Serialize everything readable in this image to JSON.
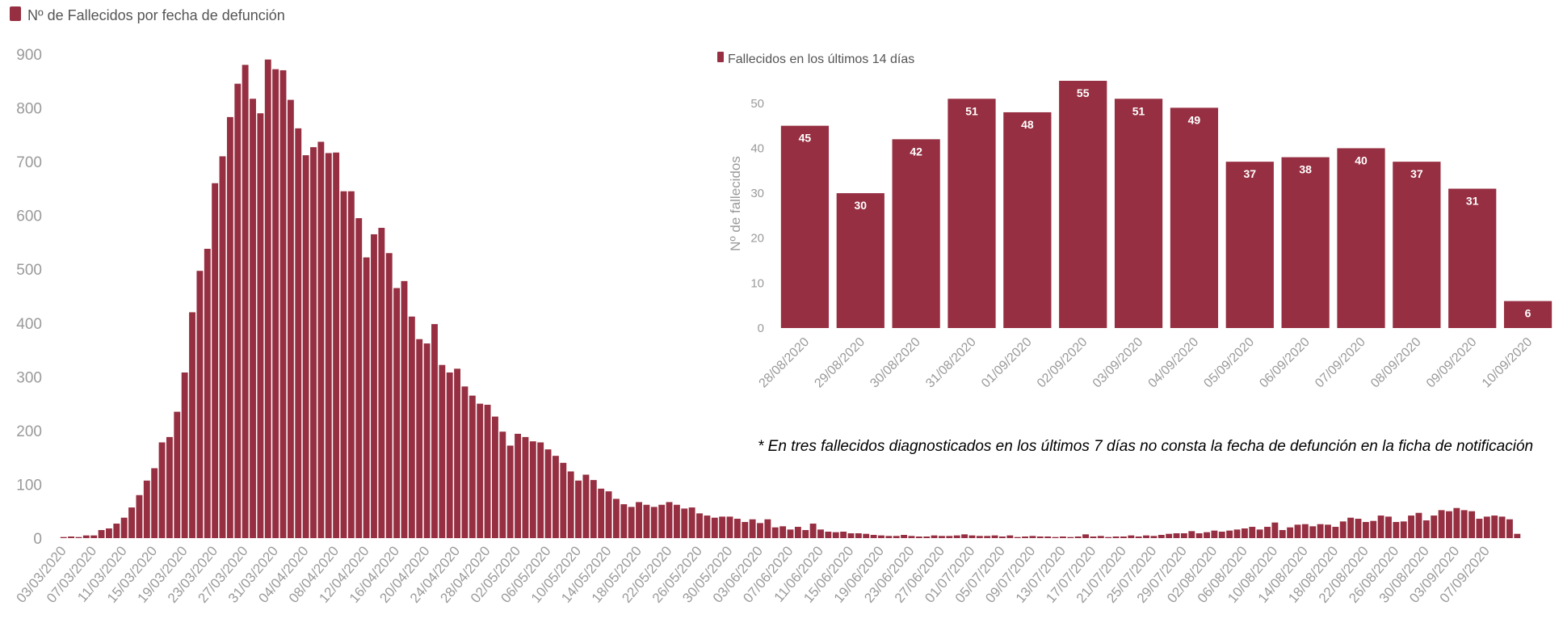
{
  "colors": {
    "bar": "#962f41",
    "axis_text": "#9a9a9a",
    "legend_text": "#555555"
  },
  "note": "* En tres fallecidos diagnosticados en los últimos 7 días no consta la fecha de defunción en la ficha de notificación",
  "chart_data": [
    {
      "type": "bar",
      "legend": "Nº de Fallecidos por fecha de defunción",
      "legend_position": "top-left",
      "ylim": [
        0,
        900
      ],
      "yticks": [
        0,
        100,
        200,
        300,
        400,
        500,
        600,
        700,
        800,
        900
      ],
      "grid": false,
      "start_date": "03/03/2020",
      "xtick_labels": [
        "03/03/2020",
        "07/03/2020",
        "11/03/2020",
        "15/03/2020",
        "19/03/2020",
        "23/03/2020",
        "27/03/2020",
        "31/03/2020",
        "04/04/2020",
        "08/04/2020",
        "12/04/2020",
        "16/04/2020",
        "20/04/2020",
        "24/04/2020",
        "28/04/2020",
        "02/05/2020",
        "06/05/2020",
        "10/05/2020",
        "14/05/2020",
        "18/05/2020",
        "22/05/2020",
        "26/05/2020",
        "30/05/2020",
        "03/06/2020",
        "07/06/2020",
        "11/06/2020",
        "15/06/2020",
        "19/06/2020",
        "23/06/2020",
        "27/06/2020",
        "01/07/2020",
        "05/07/2020",
        "09/07/2020",
        "13/07/2020",
        "17/07/2020",
        "21/07/2020",
        "25/07/2020",
        "29/07/2020",
        "02/08/2020",
        "06/08/2020",
        "10/08/2020",
        "14/08/2020",
        "18/08/2020",
        "22/08/2020",
        "26/08/2020",
        "30/08/2020",
        "03/09/2020",
        "07/09/2020"
      ],
      "values": [
        2,
        3,
        2,
        5,
        5,
        15,
        18,
        27,
        38,
        57,
        80,
        107,
        130,
        178,
        188,
        235,
        308,
        420,
        497,
        538,
        660,
        710,
        783,
        845,
        880,
        817,
        790,
        890,
        872,
        870,
        815,
        762,
        712,
        727,
        737,
        716,
        717,
        645,
        645,
        595,
        522,
        565,
        577,
        530,
        465,
        478,
        412,
        370,
        362,
        398,
        322,
        308,
        315,
        282,
        265,
        250,
        248,
        226,
        198,
        172,
        194,
        188,
        180,
        178,
        165,
        153,
        140,
        124,
        107,
        118,
        108,
        92,
        87,
        73,
        63,
        58,
        67,
        62,
        58,
        62,
        67,
        62,
        55,
        57,
        46,
        42,
        38,
        40,
        40,
        36,
        30,
        35,
        28,
        35,
        20,
        22,
        16,
        21,
        15,
        27,
        16,
        12,
        11,
        12,
        9,
        9,
        8,
        6,
        5,
        4,
        4,
        6,
        4,
        3,
        3,
        5,
        4,
        4,
        5,
        7,
        5,
        4,
        4,
        5,
        3,
        5,
        2,
        3,
        4,
        3,
        3,
        2,
        3,
        2,
        3,
        7,
        3,
        4,
        2,
        3,
        3,
        5,
        3,
        5,
        4,
        6,
        8,
        9,
        9,
        13,
        9,
        11,
        14,
        12,
        14,
        16,
        18,
        21,
        16,
        21,
        29,
        15,
        20,
        25,
        26,
        22,
        26,
        25,
        21,
        31,
        38,
        36,
        30,
        32,
        42,
        40,
        30,
        31,
        42,
        47,
        33,
        42,
        52,
        50,
        56,
        52,
        50,
        36,
        40,
        42,
        40,
        35,
        8
      ]
    },
    {
      "type": "bar",
      "legend": "Fallecidos en los últimos 14 días",
      "legend_position": "top-left",
      "ylabel": "Nº de fallecidos",
      "ylim": [
        0,
        55
      ],
      "yticks": [
        0,
        10,
        20,
        30,
        40,
        50
      ],
      "grid": false,
      "categories": [
        "28/08/2020",
        "29/08/2020",
        "30/08/2020",
        "31/08/2020",
        "01/09/2020",
        "02/09/2020",
        "03/09/2020",
        "04/09/2020",
        "05/09/2020",
        "06/09/2020",
        "07/09/2020",
        "08/09/2020",
        "09/09/2020",
        "10/09/2020"
      ],
      "values": [
        45,
        30,
        42,
        51,
        48,
        55,
        51,
        49,
        37,
        38,
        40,
        37,
        31,
        6
      ]
    }
  ]
}
